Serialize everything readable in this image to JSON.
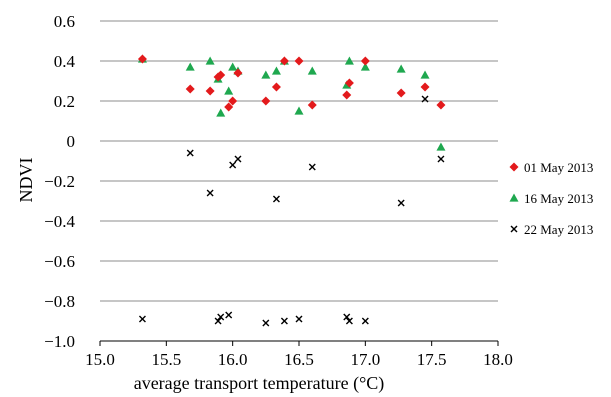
{
  "chart_data": {
    "type": "scatter",
    "title": "",
    "xlabel": "average transport temperature (°C)",
    "ylabel": "NDVI",
    "xlim": [
      15.0,
      18.0
    ],
    "ylim": [
      -1.0,
      0.6
    ],
    "xticks": [
      15.0,
      15.5,
      16.0,
      16.5,
      17.0,
      17.5,
      18.0
    ],
    "xtick_labels": [
      "15.0",
      "15.5",
      "16.0",
      "16.5",
      "17.0",
      "17.5",
      "18.0"
    ],
    "yticks": [
      -1.0,
      -0.8,
      -0.6,
      -0.4,
      -0.2,
      0,
      0.2,
      0.4,
      0.6
    ],
    "ytick_labels": [
      "−1.0",
      "−0.8",
      "−0.6",
      "−0.4",
      "−0.2",
      "0",
      "0.2",
      "0.4",
      "0.6"
    ],
    "grid": "horizontal",
    "legend_position": "right",
    "series": [
      {
        "name": "01 May 2013",
        "marker": "diamond",
        "color": "#e31a1c",
        "points": [
          [
            15.32,
            0.41
          ],
          [
            15.68,
            0.26
          ],
          [
            15.83,
            0.25
          ],
          [
            15.89,
            0.32
          ],
          [
            15.91,
            0.33
          ],
          [
            15.97,
            0.17
          ],
          [
            16.0,
            0.2
          ],
          [
            16.04,
            0.34
          ],
          [
            16.25,
            0.2
          ],
          [
            16.33,
            0.27
          ],
          [
            16.39,
            0.4
          ],
          [
            16.5,
            0.4
          ],
          [
            16.6,
            0.18
          ],
          [
            16.86,
            0.23
          ],
          [
            16.88,
            0.29
          ],
          [
            17.0,
            0.4
          ],
          [
            17.27,
            0.24
          ],
          [
            17.45,
            0.27
          ],
          [
            17.57,
            0.18
          ]
        ]
      },
      {
        "name": "16 May 2013",
        "marker": "triangle",
        "color": "#1fa84f",
        "points": [
          [
            15.32,
            0.41
          ],
          [
            15.68,
            0.37
          ],
          [
            15.83,
            0.4
          ],
          [
            15.89,
            0.31
          ],
          [
            15.91,
            0.14
          ],
          [
            15.97,
            0.25
          ],
          [
            16.0,
            0.37
          ],
          [
            16.04,
            0.35
          ],
          [
            16.25,
            0.33
          ],
          [
            16.33,
            0.35
          ],
          [
            16.39,
            0.4
          ],
          [
            16.5,
            0.15
          ],
          [
            16.6,
            0.35
          ],
          [
            16.86,
            0.28
          ],
          [
            16.88,
            0.4
          ],
          [
            17.0,
            0.37
          ],
          [
            17.27,
            0.36
          ],
          [
            17.45,
            0.33
          ],
          [
            17.57,
            -0.03
          ]
        ]
      },
      {
        "name": "22 May 2013",
        "marker": "x",
        "color": "#000000",
        "points": [
          [
            15.32,
            -0.89
          ],
          [
            15.68,
            -0.06
          ],
          [
            15.83,
            -0.26
          ],
          [
            15.89,
            -0.9
          ],
          [
            15.91,
            -0.88
          ],
          [
            15.97,
            -0.87
          ],
          [
            16.0,
            -0.12
          ],
          [
            16.04,
            -0.09
          ],
          [
            16.25,
            -0.91
          ],
          [
            16.33,
            -0.29
          ],
          [
            16.39,
            -0.9
          ],
          [
            16.5,
            -0.89
          ],
          [
            16.6,
            -0.13
          ],
          [
            16.86,
            -0.88
          ],
          [
            16.88,
            -0.9
          ],
          [
            17.0,
            -0.9
          ],
          [
            17.27,
            -0.31
          ],
          [
            17.45,
            0.21
          ],
          [
            17.57,
            -0.09
          ]
        ]
      }
    ]
  }
}
